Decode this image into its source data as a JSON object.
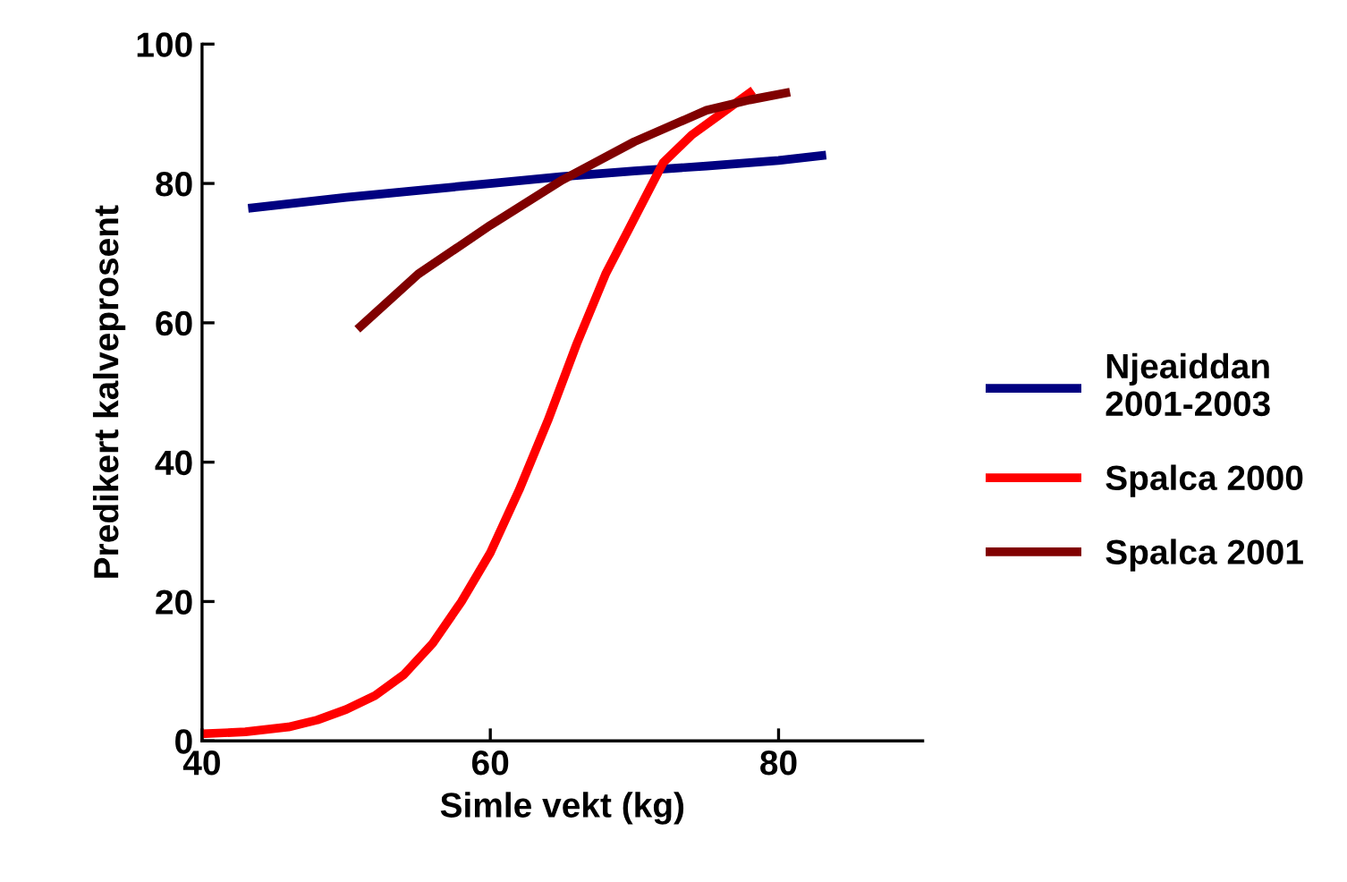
{
  "chart_data": {
    "type": "line",
    "xlabel": "Simle vekt (kg)",
    "ylabel": "Predikert kalveprosent",
    "xlim": [
      40,
      90
    ],
    "xticks": [
      40,
      60,
      80
    ],
    "ylim": [
      0,
      100
    ],
    "yticks": [
      0,
      20,
      40,
      60,
      80,
      100
    ],
    "grid": false,
    "legend": "right",
    "marker": "none",
    "line_style": "solid",
    "series": [
      {
        "name": "Njeaiddan\n2001-2003",
        "color": "#000080",
        "x": [
          43.5,
          50,
          55,
          60,
          65,
          70,
          75,
          80,
          83
        ],
        "values": [
          76.5,
          78,
          79,
          80,
          81,
          81.8,
          82.5,
          83.3,
          84
        ]
      },
      {
        "name": "Spalca 2000",
        "color": "#ff0000",
        "x": [
          40,
          43,
          46,
          48,
          50,
          52,
          54,
          56,
          58,
          60,
          62,
          64,
          66,
          68,
          70,
          72,
          74,
          76,
          78
        ],
        "values": [
          1,
          1.3,
          2,
          3,
          4.5,
          6.5,
          9.5,
          14,
          20,
          27,
          36,
          46,
          57,
          67,
          75,
          83,
          87,
          90,
          93
        ]
      },
      {
        "name": "Spalca 2001",
        "color": "#800000",
        "x": [
          51,
          55,
          60,
          65,
          70,
          75,
          78,
          80.5
        ],
        "values": [
          59.5,
          67,
          74,
          80.5,
          86,
          90.5,
          92,
          93
        ]
      }
    ]
  }
}
